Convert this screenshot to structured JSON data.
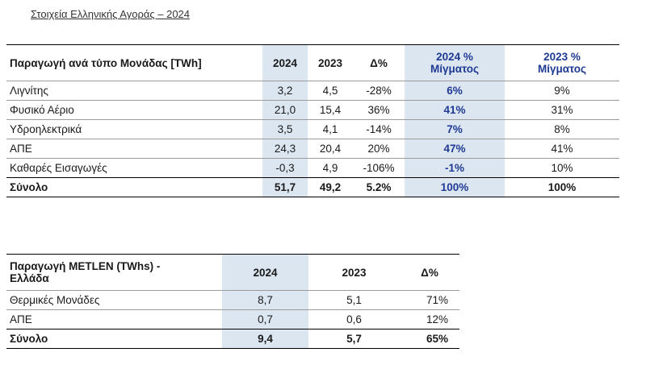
{
  "title": "Στοιχεία Ελληνικής Αγοράς – 2024",
  "market_table": {
    "headers": {
      "label": "Παραγωγή ανά τύπο Μονάδας [TWh]",
      "y2024": "2024",
      "y2023": "2023",
      "delta": "Δ%",
      "mix2024_line1": "2024 %",
      "mix2024_line2": "Μίγματος",
      "mix2023_line1": "2023 %",
      "mix2023_line2": "Μίγματος"
    },
    "rows": [
      {
        "label": "Λιγνίτης",
        "v2024": "3,2",
        "v2023": "4,5",
        "delta": "-28%",
        "mix2024": "6%",
        "mix2023": "9%"
      },
      {
        "label": "Φυσικό Αέριο",
        "v2024": "21,0",
        "v2023": "15,4",
        "delta": "36%",
        "mix2024": "41%",
        "mix2023": "31%"
      },
      {
        "label": "Υδροηλεκτρικά",
        "v2024": "3,5",
        "v2023": "4,1",
        "delta": "-14%",
        "mix2024": "7%",
        "mix2023": "8%"
      },
      {
        "label": "ΑΠΕ",
        "v2024": "24,3",
        "v2023": "20,4",
        "delta": "20%",
        "mix2024": "47%",
        "mix2023": "41%"
      },
      {
        "label": "Καθαρές Εισαγωγές",
        "v2024": "-0,3",
        "v2023": "4,9",
        "delta": "-106%",
        "mix2024": "-1%",
        "mix2023": "10%"
      }
    ],
    "total": {
      "label": "Σύνολο",
      "v2024": "51,7",
      "v2023": "49,2",
      "delta": "5.2%",
      "mix2024": "100%",
      "mix2023": "100%"
    }
  },
  "metlen_table": {
    "headers": {
      "label_line1": "Παραγωγή METLEN (TWhs) -",
      "label_line2": "Ελλάδα",
      "y2024": "2024",
      "y2023": "2023",
      "delta": "Δ%"
    },
    "rows": [
      {
        "label": "Θερμικές Μονάδες",
        "v2024": "8,7",
        "v2023": "5,1",
        "delta": "71%"
      },
      {
        "label": "ΑΠΕ",
        "v2024": "0,7",
        "v2023": "0,6",
        "delta": "12%"
      }
    ],
    "total": {
      "label": "Σύνολο",
      "v2024": "9,4",
      "v2023": "5,7",
      "delta": "65%"
    }
  }
}
